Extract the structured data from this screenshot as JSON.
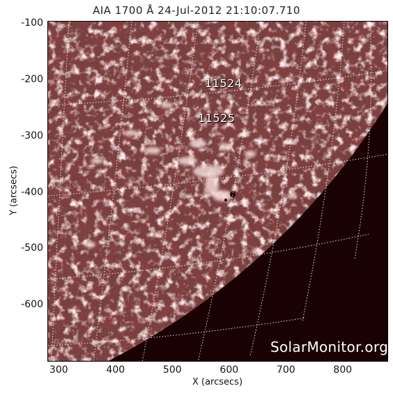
{
  "title": "AIA 1700 Å 24-Jul-2012 21:10:07.710",
  "x_axis": {
    "label": "X (arcsecs)",
    "ticks": [
      "300",
      "400",
      "500",
      "600",
      "700",
      "800"
    ],
    "range": [
      280,
      880
    ]
  },
  "y_axis": {
    "label": "Y (arcsecs)",
    "ticks": [
      "-100",
      "-200",
      "-300",
      "-400",
      "-500",
      "-600"
    ],
    "range": [
      -700,
      -95
    ]
  },
  "regions": [
    {
      "number": "11524"
    },
    {
      "number": "11525"
    }
  ],
  "watermark": "SolarMonitor.org",
  "colors": {
    "disk": "#7a4040",
    "off_limb": "#1a0202",
    "grid_lines": "#ffffff"
  }
}
